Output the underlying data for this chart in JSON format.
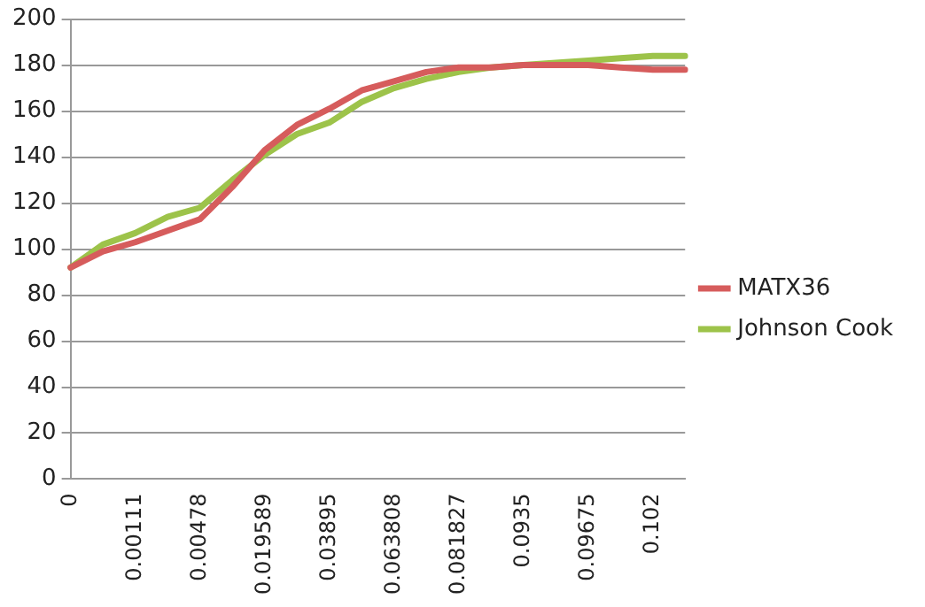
{
  "chart_data": {
    "type": "line",
    "categories": [
      "0",
      null,
      "0.00111",
      null,
      "0.00478",
      null,
      "0.019589",
      null,
      "0.03895",
      null,
      "0.063808",
      null,
      "0.081827",
      null,
      "0.0935",
      null,
      "0.09675",
      null,
      "0.102",
      null
    ],
    "series": [
      {
        "name": "MATX36",
        "color": "#d65c5c",
        "values": [
          92,
          99,
          103,
          108,
          113,
          127,
          143,
          154,
          161,
          169,
          173,
          177,
          179,
          179,
          180,
          180,
          180,
          179,
          178,
          178
        ]
      },
      {
        "name": "Johnson Cook",
        "color": "#9dc34a",
        "values": [
          92,
          102,
          107,
          114,
          118,
          130,
          141,
          150,
          155,
          164,
          170,
          174,
          177,
          179,
          180,
          181,
          182,
          183,
          184,
          184
        ]
      }
    ],
    "ylim": [
      0,
      200
    ],
    "yticks": [
      0,
      20,
      40,
      60,
      80,
      100,
      120,
      140,
      160,
      180,
      200
    ],
    "grid": "y",
    "legend": "right",
    "marker": "none",
    "line_style": "solid"
  }
}
